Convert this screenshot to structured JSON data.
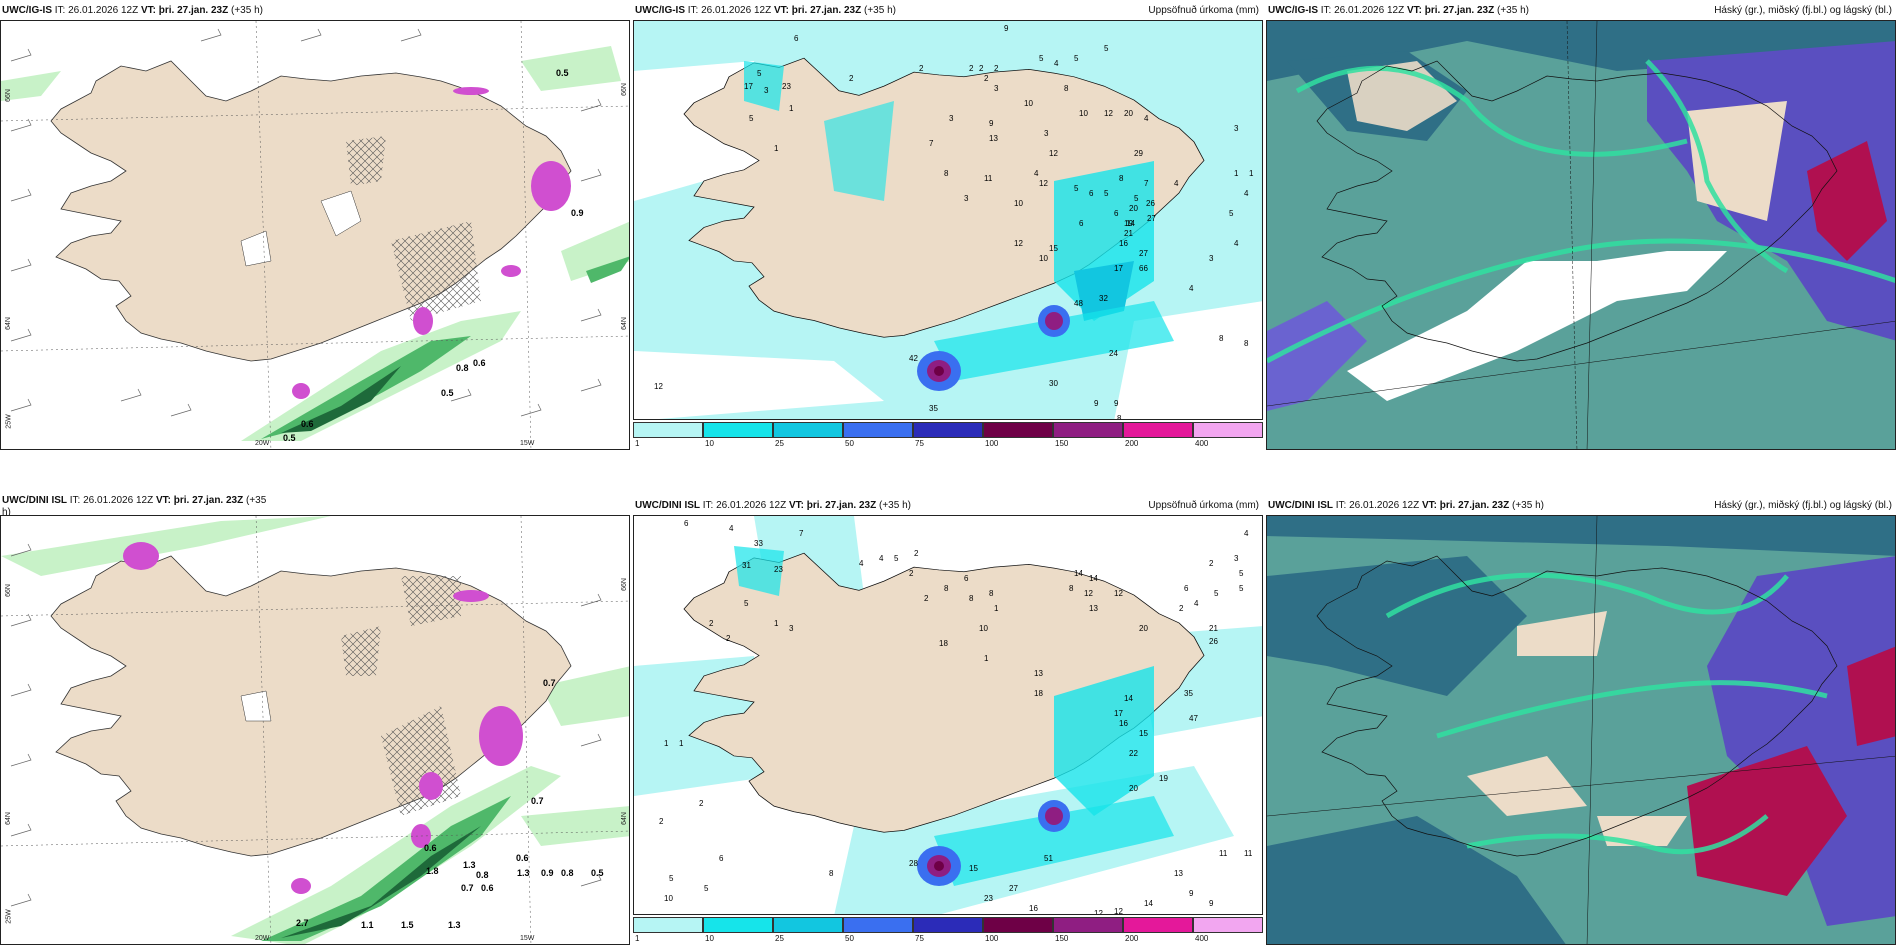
{
  "colors": {
    "land": "#ecdcc8",
    "sea_light": "#b6f5f4",
    "cyan": "#16e4ea",
    "cyan_mid": "#12c6e0",
    "blue": "#3a6ff0",
    "dblue": "#2b2bb8",
    "maroon": "#6e0046",
    "purple": "#8f1e82",
    "magenta": "#e4189a",
    "pink": "#f2a6f0",
    "teal": "#5aa19a",
    "dteal": "#2f6f86",
    "green_bright": "#30e0a0",
    "violet": "#5a4fc0",
    "crimson": "#b01050",
    "lgreen": "#c8f2c8",
    "mgreen": "#4fb86a",
    "dgreen": "#1e6a3a"
  },
  "colorbar": {
    "labels": [
      "1",
      "10",
      "25",
      "50",
      "75",
      "100",
      "150",
      "200",
      "400"
    ],
    "colors": [
      "#b6f5f4",
      "#16e4ea",
      "#12c6e0",
      "#3a6ff0",
      "#2b2bb8",
      "#6e0046",
      "#8f1e82",
      "#e4189a",
      "#f2a6f0"
    ]
  },
  "axes": {
    "top_left_lat_66": "66N",
    "top_left_lat_64": "64N",
    "top_left_lon_25": "25W",
    "lon_20": "20W",
    "lon_15": "15W",
    "right_lat_66": "66N",
    "right_lat_64": "64N"
  },
  "panels": [
    {
      "model": "UWC/IG-IS",
      "it_label": "IT:",
      "it": "26.01.2026 12Z",
      "vt_label": "VT:",
      "vt": "þri. 27.jan. 23Z",
      "lead": "(+35 h)",
      "right": "",
      "labels": [
        "0.5",
        "0.8",
        "0.6",
        "0.5",
        "0.6",
        "0.5",
        "0.9"
      ]
    },
    {
      "model": "UWC/IG-IS",
      "it_label": "IT:",
      "it": "26.01.2026 12Z",
      "vt_label": "VT:",
      "vt": "þri. 27.jan. 23Z",
      "lead": "(+35 h)",
      "right": "Uppsöfnuð úrkoma (mm)",
      "labels": [
        "6",
        "9",
        "2",
        "2",
        "2",
        "1",
        "5",
        "3",
        "17",
        "23",
        "5",
        "1",
        "2",
        "2",
        "3",
        "2",
        "5",
        "4",
        "5",
        "5",
        "9",
        "10",
        "8",
        "10",
        "12",
        "20",
        "3",
        "7",
        "13",
        "3",
        "4",
        "8",
        "4",
        "29",
        "12",
        "12",
        "11",
        "3",
        "10",
        "5",
        "6",
        "5",
        "8",
        "7",
        "4",
        "6",
        "5",
        "6",
        "20",
        "26",
        "19",
        "14",
        "27",
        "21",
        "15",
        "12",
        "10",
        "27",
        "17",
        "16",
        "66",
        "48",
        "32",
        "24",
        "42",
        "35",
        "30",
        "12",
        "9",
        "9",
        "8",
        "8",
        "8",
        "4",
        "3",
        "4",
        "5",
        "4",
        "1",
        "1",
        "3"
      ]
    },
    {
      "model": "UWC/IG-IS",
      "it_label": "IT:",
      "it": "26.01.2026 12Z",
      "vt_label": "VT:",
      "vt": "þri. 27.jan. 23Z",
      "lead": "(+35 h)",
      "right": "Háský (gr.), miðský (fj.bl.) og lágský (bl.)",
      "labels": []
    },
    {
      "model": "UWC/DINI ISL",
      "it_label": "IT:",
      "it": "26.01.2026 12Z",
      "vt_label": "VT:",
      "vt": "þri. 27.jan. 23Z",
      "lead": "(+35",
      "lead2": "h)",
      "right": "",
      "labels": [
        "0.7",
        "0.6",
        "0.8",
        "1.3",
        "1.8",
        "2.7",
        "1.3",
        "0.9",
        "0.8",
        "0.5",
        "0.6",
        "0.7",
        "1.3",
        "1.5",
        "1.1",
        "0.6",
        "0.7"
      ]
    },
    {
      "model": "UWC/DINI ISL",
      "it_label": "IT:",
      "it": "26.01.2026 12Z",
      "vt_label": "VT:",
      "vt": "þri. 27.jan. 23Z",
      "lead": "(+35 h)",
      "right": "Uppsöfnuð úrkoma (mm)",
      "labels": [
        "6",
        "4",
        "7",
        "33",
        "31",
        "23",
        "5",
        "2",
        "1",
        "2",
        "3",
        "4",
        "4",
        "5",
        "2",
        "2",
        "2",
        "8",
        "6",
        "8",
        "8",
        "1",
        "14",
        "14",
        "12",
        "8",
        "12",
        "13",
        "20",
        "21",
        "18",
        "10",
        "18",
        "13",
        "26",
        "47",
        "35",
        "15",
        "16",
        "22",
        "17",
        "14",
        "19",
        "20",
        "28",
        "15",
        "51",
        "27",
        "23",
        "12",
        "16",
        "14",
        "13",
        "11",
        "11",
        "9",
        "9",
        "12",
        "5",
        "10",
        "5",
        "6",
        "8",
        "2",
        "2",
        "1",
        "1",
        "1",
        "4",
        "3",
        "5",
        "5",
        "2",
        "6",
        "5",
        "4",
        "2"
      ]
    },
    {
      "model": "UWC/DINI ISL",
      "it_label": "IT:",
      "it": "26.01.2026 12Z",
      "vt_label": "VT:",
      "vt": "þri. 27.jan. 23Z",
      "lead": "(+35 h)",
      "right": "Háský (gr.), miðský (fj.bl.) og lágský (bl.)",
      "labels": []
    }
  ]
}
